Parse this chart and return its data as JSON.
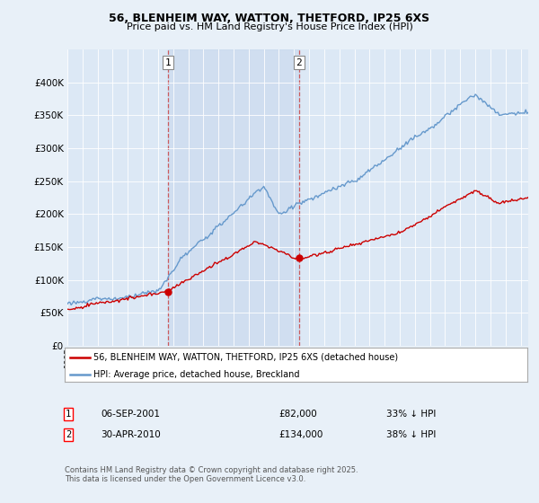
{
  "title_line1": "56, BLENHEIM WAY, WATTON, THETFORD, IP25 6XS",
  "title_line2": "Price paid vs. HM Land Registry's House Price Index (HPI)",
  "legend_red": "56, BLENHEIM WAY, WATTON, THETFORD, IP25 6XS (detached house)",
  "legend_blue": "HPI: Average price, detached house, Breckland",
  "footnote": "Contains HM Land Registry data © Crown copyright and database right 2025.\nThis data is licensed under the Open Government Licence v3.0.",
  "marker1_date": "06-SEP-2001",
  "marker1_price": "£82,000",
  "marker1_hpi": "33% ↓ HPI",
  "marker1_year": 2001.67,
  "marker1_value": 82000,
  "marker2_date": "30-APR-2010",
  "marker2_price": "£134,000",
  "marker2_hpi": "38% ↓ HPI",
  "marker2_year": 2010.33,
  "marker2_value": 134000,
  "ylim": [
    0,
    450000
  ],
  "xlim_start": 1995,
  "xlim_end": 2025.5,
  "background_color": "#e8f0f8",
  "plot_bg_color": "#dce8f5",
  "hpi_color": "#6699cc",
  "price_color": "#cc0000",
  "shade_color": "#c8d8ee",
  "grid_color": "#ffffff"
}
